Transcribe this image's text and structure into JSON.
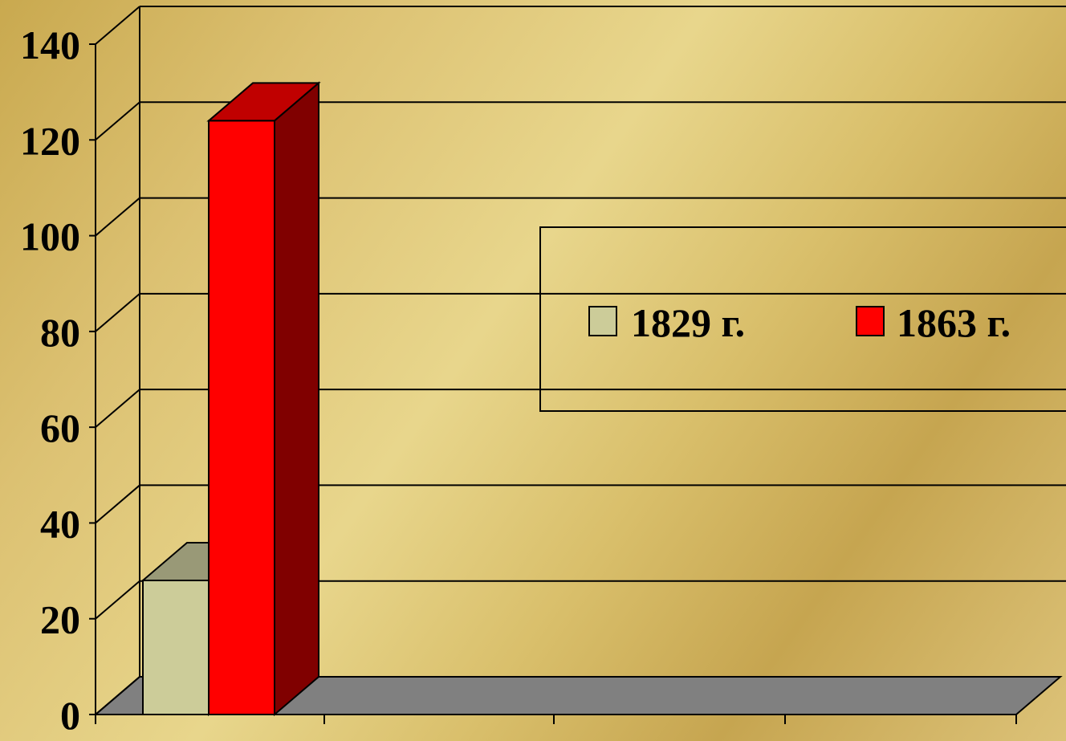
{
  "chart_data": {
    "type": "bar",
    "three_d": true,
    "categories": [
      ""
    ],
    "series": [
      {
        "name": "1829 г.",
        "values": [
          28
        ],
        "color": "#cccc99"
      },
      {
        "name": "1863 г.",
        "values": [
          124
        ],
        "color": "#ff0000"
      }
    ],
    "title": "",
    "xlabel": "",
    "ylabel": "",
    "ylim": [
      0,
      140
    ],
    "yticks": [
      "0",
      "20",
      "40",
      "60",
      "80",
      "100",
      "120",
      "140"
    ],
    "grid": true,
    "legend_position": "right"
  },
  "colors": {
    "floor": "#808080",
    "gridline": "#000000",
    "bar_1863_side": "#800000",
    "bar_1863_top": "#c00000",
    "bar_1829_side": "#999966",
    "bar_1829_top": "#999977"
  }
}
